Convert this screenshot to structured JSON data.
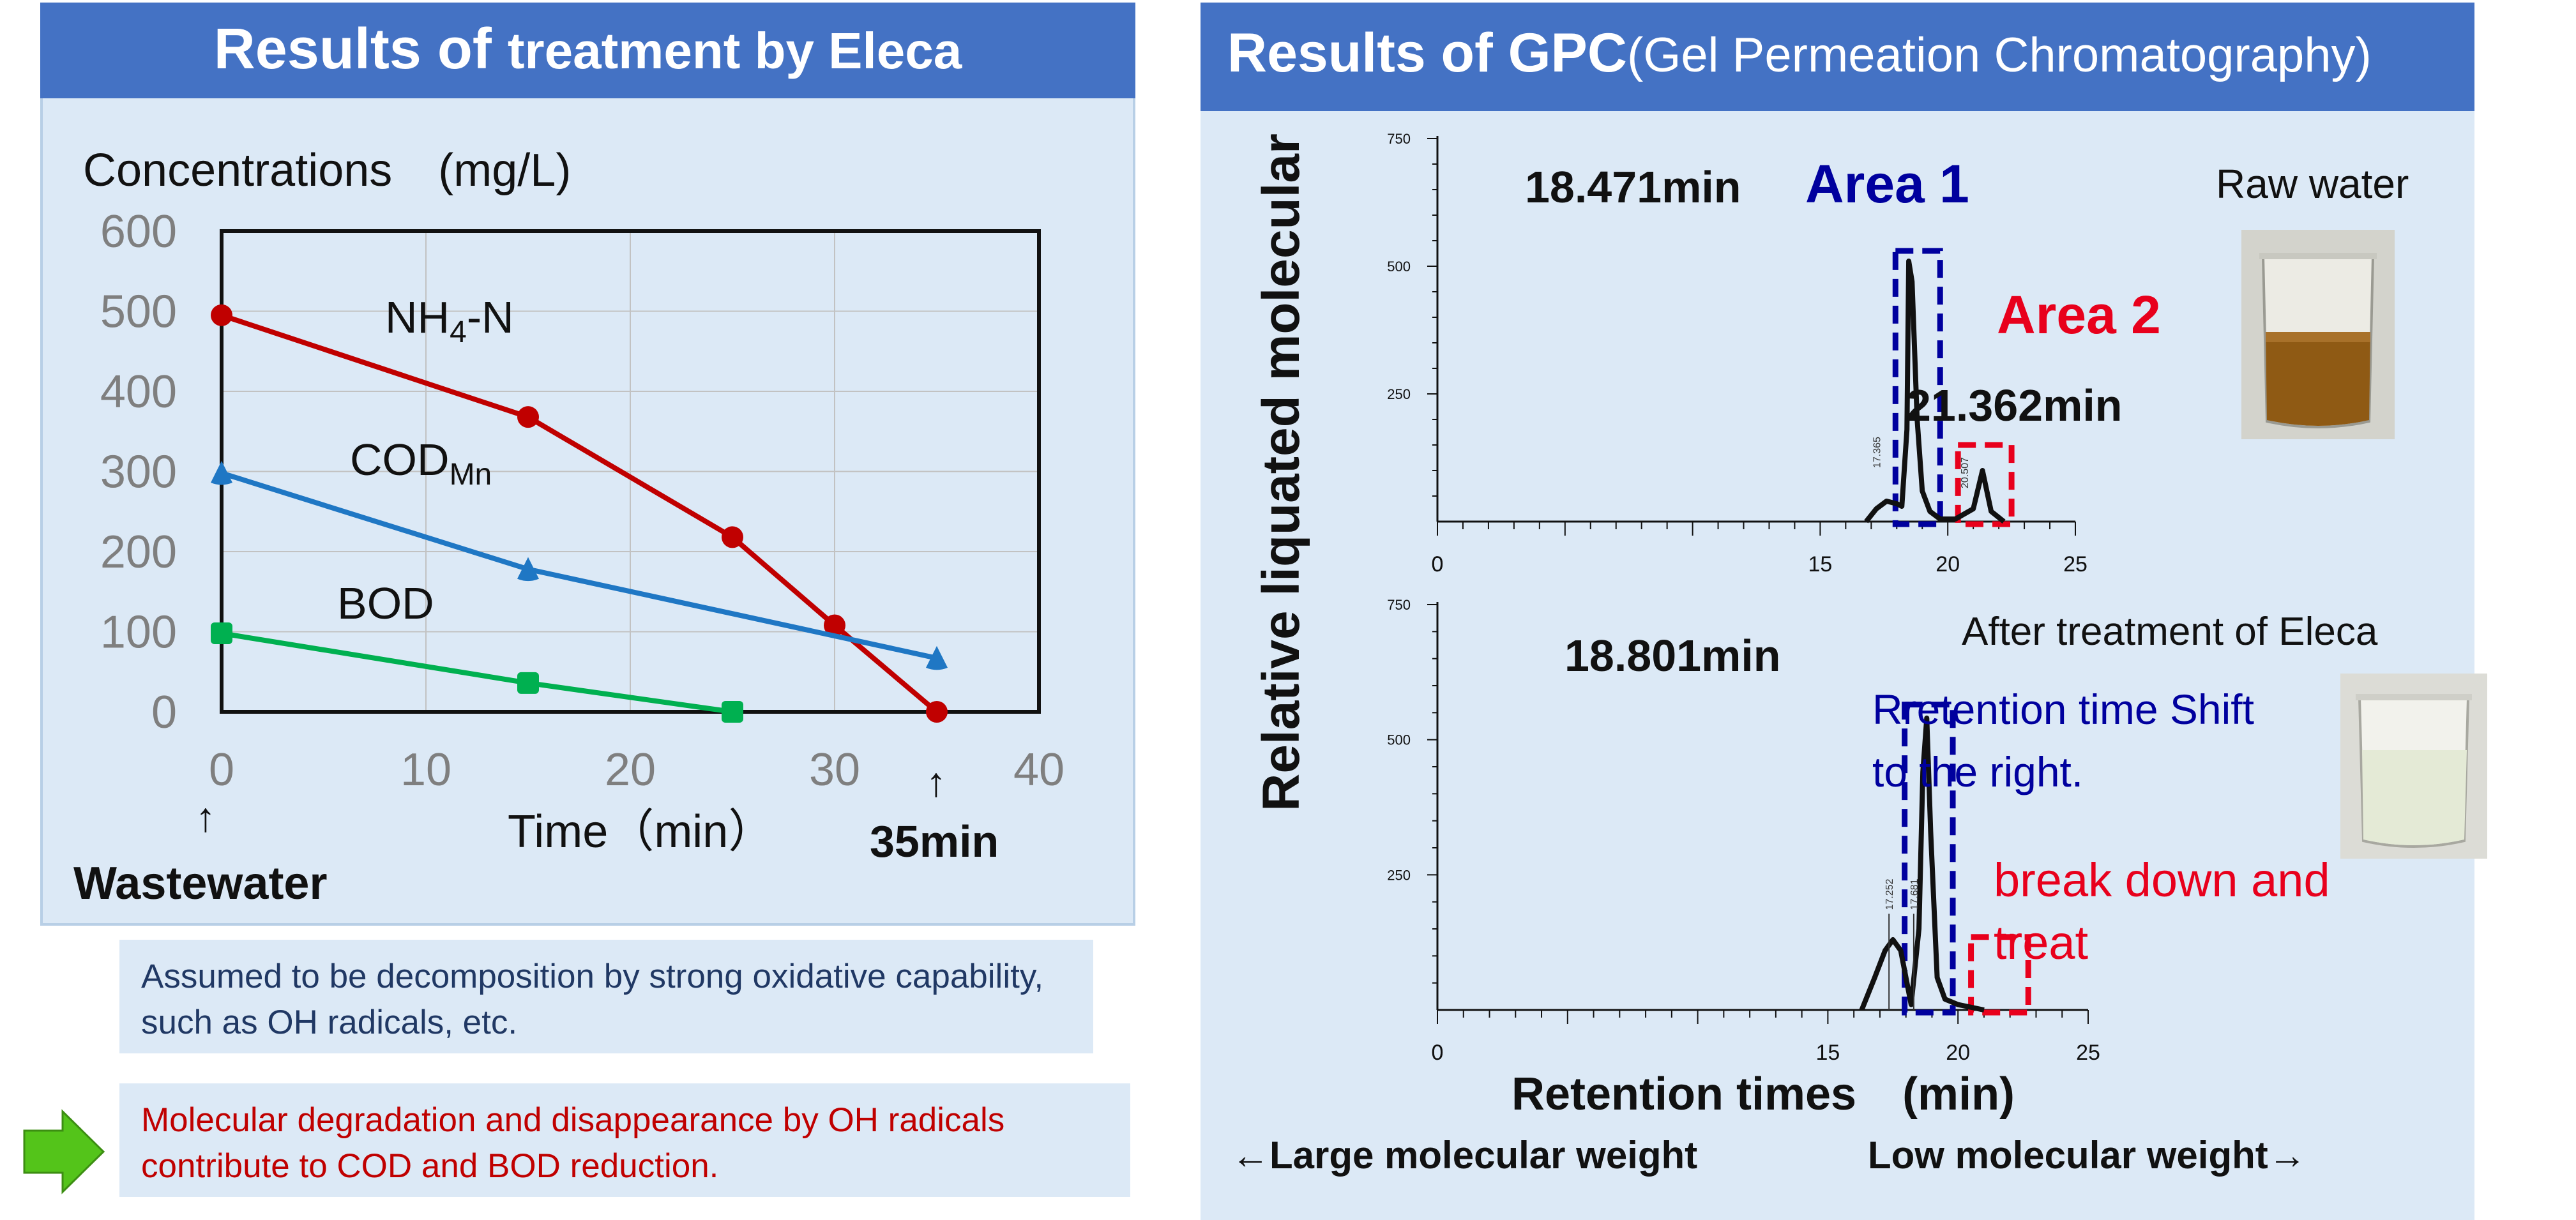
{
  "left_panel": {
    "title_a": "Results of ",
    "title_b": "treatment by Eleca",
    "ylabel": "Concentrations　(mg/L)",
    "xlabel": "Time（min）",
    "arrow_glyph": "↑",
    "wastewater_label": "Wastewater",
    "time35_label": "35min",
    "series_labels": {
      "nh4_main": "NH",
      "nh4_sub": "4",
      "nh4_tail": "-N",
      "cod_main": "COD",
      "cod_sub": "Mn",
      "bod": "BOD"
    }
  },
  "notes": {
    "note1": "Assumed to be decomposition by strong oxidative capability, such as OH radicals, etc.",
    "note2": "Molecular degradation and disappearance by OH radicals contribute to COD and BOD reduction."
  },
  "right_panel": {
    "title_a": "Results of GPC",
    "title_b": "(Gel Permeation Chromatography)",
    "ylabel": "Relative liquated molecular",
    "xlabel": "Retention times　(min)",
    "large_mw": "←Large molecular weight",
    "low_mw": "Low molecular weight→",
    "top": {
      "peak1_time": "18.471min",
      "peak2_time": "21.362min",
      "area1": "Area 1",
      "area2": "Area 2",
      "sample": "Raw water",
      "small_label_a": "17.365",
      "small_label_b": "20.507"
    },
    "bottom": {
      "peak_time": "18.801min",
      "sample": "After treatment of Eleca",
      "shift_line1": "Rretention time Shift",
      "shift_line2": "to the right.",
      "break_line1": "break down and",
      "break_line2": "treat",
      "small_label_a": "17.252",
      "small_label_b": "17.681"
    }
  },
  "colors": {
    "header_blue": "#4472c4",
    "panel_bg": "#dce9f6",
    "nh4": "#c00000",
    "cod": "#1f77c4",
    "bod": "#00b050",
    "area1": "#00009e",
    "area2": "#e8001c",
    "arrow_green": "#54c41a"
  },
  "chart_data": [
    {
      "type": "line",
      "title": "Results of treatment by Eleca",
      "xlabel": "Time（min）",
      "ylabel": "Concentrations　(mg/L)",
      "xlim": [
        0,
        40
      ],
      "ylim": [
        0,
        600
      ],
      "xticks": [
        0,
        10,
        20,
        30,
        40
      ],
      "yticks": [
        0,
        100,
        200,
        300,
        400,
        500,
        600
      ],
      "grid": true,
      "series": [
        {
          "name": "NH4-N",
          "x": [
            0,
            15,
            25,
            30,
            35
          ],
          "y": [
            495,
            368,
            218,
            108,
            0
          ]
        },
        {
          "name": "CODMn",
          "x": [
            0,
            15,
            35
          ],
          "y": [
            298,
            178,
            67
          ]
        },
        {
          "name": "BOD",
          "x": [
            0,
            15,
            25
          ],
          "y": [
            98,
            36,
            0
          ]
        }
      ]
    },
    {
      "type": "line",
      "title": "Raw water",
      "xlabel": "Retention times　(min)",
      "ylabel": "Relative liquated molecular",
      "xlim": [
        0,
        25
      ],
      "ylim": [
        0,
        750
      ],
      "xticks": [
        0,
        15,
        20,
        25
      ],
      "yticks": [
        250,
        500,
        750
      ],
      "series": [
        {
          "name": "",
          "x": [
            16.8,
            17.2,
            17.6,
            18.0,
            18.2,
            18.4,
            18.47,
            18.6,
            18.8,
            19.0,
            19.3,
            19.7,
            20.3,
            21.0,
            21.36,
            21.7,
            22.2
          ],
          "y": [
            0,
            25,
            40,
            35,
            30,
            180,
            510,
            470,
            200,
            60,
            20,
            5,
            5,
            25,
            100,
            20,
            0
          ]
        }
      ],
      "annotations": [
        "18.471min",
        "21.362min",
        "Area 1",
        "Area 2"
      ]
    },
    {
      "type": "line",
      "title": "After treatment of Eleca",
      "xlabel": "Retention times　(min)",
      "ylabel": "Relative liquated molecular",
      "xlim": [
        0,
        25
      ],
      "ylim": [
        0,
        750
      ],
      "xticks": [
        0,
        15,
        20,
        25
      ],
      "yticks": [
        250,
        500,
        750
      ],
      "series": [
        {
          "name": "",
          "x": [
            16.3,
            16.8,
            17.2,
            17.5,
            17.8,
            18.2,
            18.5,
            18.65,
            18.8,
            18.95,
            19.2,
            19.5,
            20.0,
            21.0
          ],
          "y": [
            0,
            60,
            110,
            130,
            110,
            10,
            150,
            440,
            540,
            330,
            60,
            20,
            10,
            0
          ]
        }
      ],
      "annotations": [
        "18.801min",
        "Rretention time Shift",
        "to the right.",
        "break down and",
        "treat"
      ]
    }
  ]
}
